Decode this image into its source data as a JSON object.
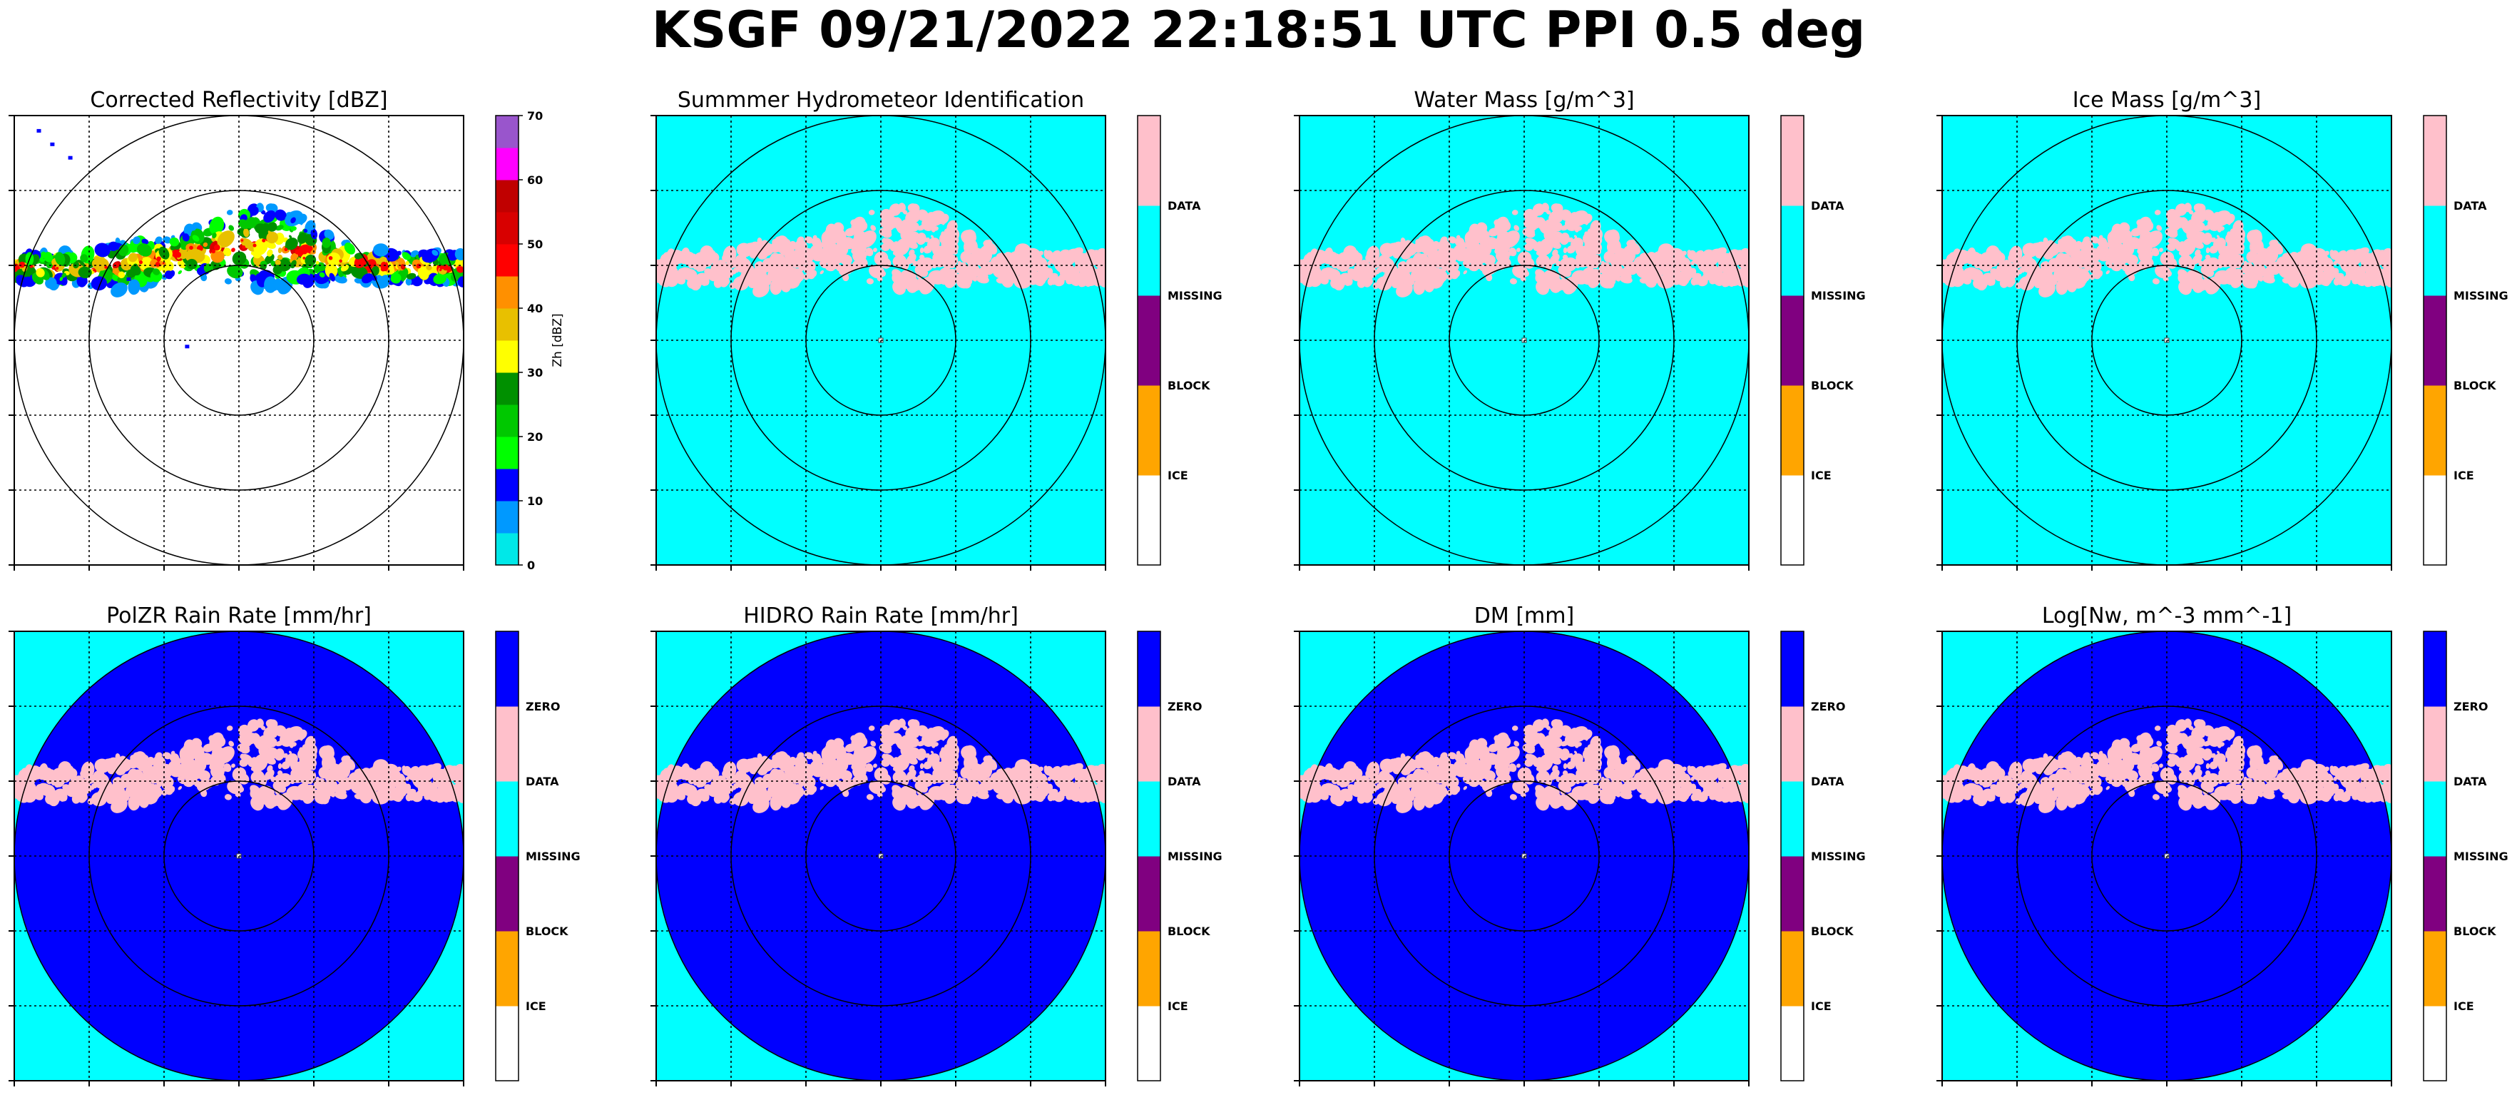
{
  "figure": {
    "suptitle": "KSGF 09/21/2022 22:18:51 UTC PPI 0.5 deg"
  },
  "chart_data": [
    {
      "type": "heatmap",
      "title": "Corrected Reflectivity [dBZ]",
      "background": "none",
      "echo_style": "reflectivity",
      "colorbar": {
        "kind": "continuous",
        "label": "Zh [dBZ]",
        "range": [
          0,
          70
        ],
        "ticks": [
          0,
          10,
          20,
          30,
          40,
          50,
          60,
          70
        ],
        "colors": [
          "#00e8e8",
          "#0099ff",
          "#0000ff",
          "#00ff00",
          "#00c800",
          "#009000",
          "#ffff00",
          "#e8c000",
          "#ff9000",
          "#ff0000",
          "#d80000",
          "#c00000",
          "#ff00ff",
          "#9955cc"
        ]
      },
      "range_rings": 3,
      "grid": true
    },
    {
      "type": "heatmap",
      "title": "Summmer Hydrometeor Identification",
      "background": "#00ffff",
      "echo_style": "flat",
      "echo_color": "#ffc0cb",
      "colorbar": {
        "kind": "categorical",
        "categories": [
          "ICE",
          "BLOCK",
          "MISSING",
          "DATA"
        ],
        "colors": [
          "#ffffff",
          "#ffa500",
          "#800080",
          "#00ffff",
          "#ffc0cb"
        ]
      },
      "range_rings": 3,
      "grid": true
    },
    {
      "type": "heatmap",
      "title": "Water Mass [g/m^3]",
      "background": "#00ffff",
      "echo_style": "flat",
      "echo_color": "#ffc0cb",
      "colorbar": {
        "kind": "categorical",
        "categories": [
          "ICE",
          "BLOCK",
          "MISSING",
          "DATA"
        ],
        "colors": [
          "#ffffff",
          "#ffa500",
          "#800080",
          "#00ffff",
          "#ffc0cb"
        ]
      },
      "range_rings": 3,
      "grid": true
    },
    {
      "type": "heatmap",
      "title": "Ice Mass [g/m^3]",
      "background": "#00ffff",
      "echo_style": "flat",
      "echo_color": "#ffc0cb",
      "colorbar": {
        "kind": "categorical",
        "categories": [
          "ICE",
          "BLOCK",
          "MISSING",
          "DATA"
        ],
        "colors": [
          "#ffffff",
          "#ffa500",
          "#800080",
          "#00ffff",
          "#ffc0cb"
        ]
      },
      "range_rings": 3,
      "grid": true
    },
    {
      "type": "heatmap",
      "title": "PolZR Rain Rate [mm/hr]",
      "background": "#00ffff",
      "disk_color": "#0000ff",
      "echo_style": "flat",
      "echo_color": "#ffc0cb",
      "colorbar": {
        "kind": "categorical",
        "categories": [
          "ICE",
          "BLOCK",
          "MISSING",
          "DATA",
          "ZERO"
        ],
        "colors": [
          "#ffffff",
          "#ffa500",
          "#800080",
          "#00ffff",
          "#ffc0cb",
          "#0000ff"
        ]
      },
      "range_rings": 3,
      "grid": true
    },
    {
      "type": "heatmap",
      "title": "HIDRO Rain Rate [mm/hr]",
      "background": "#00ffff",
      "disk_color": "#0000ff",
      "echo_style": "flat",
      "echo_color": "#ffc0cb",
      "colorbar": {
        "kind": "categorical",
        "categories": [
          "ICE",
          "BLOCK",
          "MISSING",
          "DATA",
          "ZERO"
        ],
        "colors": [
          "#ffffff",
          "#ffa500",
          "#800080",
          "#00ffff",
          "#ffc0cb",
          "#0000ff"
        ]
      },
      "range_rings": 3,
      "grid": true
    },
    {
      "type": "heatmap",
      "title": "DM [mm]",
      "background": "#00ffff",
      "disk_color": "#0000ff",
      "echo_style": "flat",
      "echo_color": "#ffc0cb",
      "colorbar": {
        "kind": "categorical",
        "categories": [
          "ICE",
          "BLOCK",
          "MISSING",
          "DATA",
          "ZERO"
        ],
        "colors": [
          "#ffffff",
          "#ffa500",
          "#800080",
          "#00ffff",
          "#ffc0cb",
          "#0000ff"
        ]
      },
      "range_rings": 3,
      "grid": true
    },
    {
      "type": "heatmap",
      "title": "Log[Nw, m^-3 mm^-1]",
      "background": "#00ffff",
      "disk_color": "#0000ff",
      "echo_style": "flat",
      "echo_color": "#ffc0cb",
      "colorbar": {
        "kind": "categorical",
        "categories": [
          "ICE",
          "BLOCK",
          "MISSING",
          "DATA",
          "ZERO"
        ],
        "colors": [
          "#ffffff",
          "#ffa500",
          "#800080",
          "#00ffff",
          "#ffc0cb",
          "#0000ff"
        ]
      },
      "range_rings": 3,
      "grid": true
    }
  ]
}
